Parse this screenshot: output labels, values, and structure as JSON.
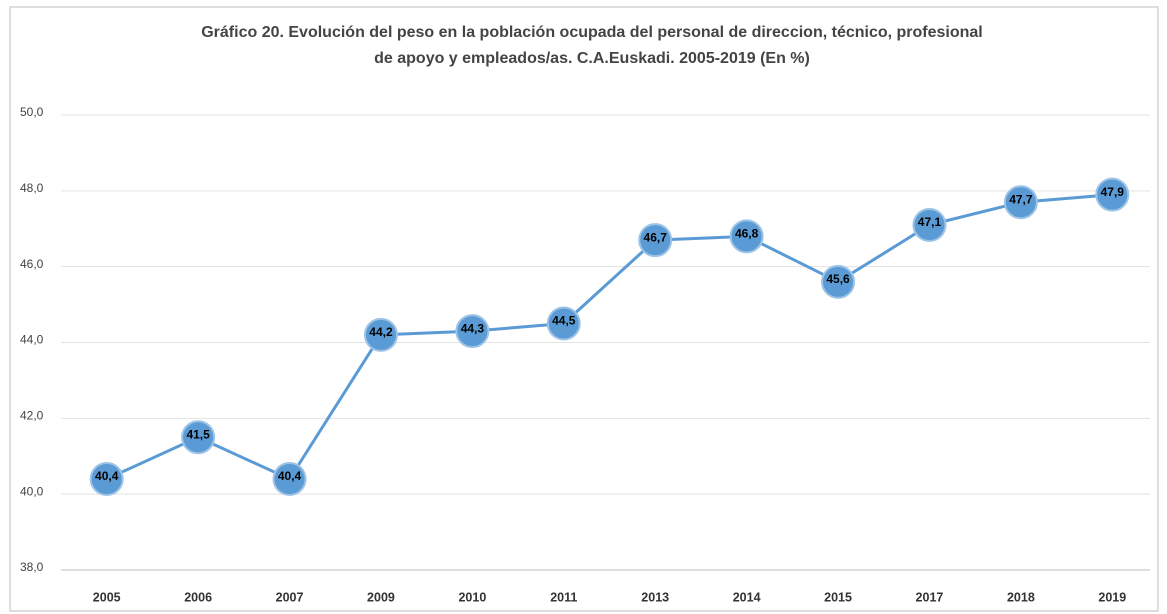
{
  "chart_data": {
    "type": "line",
    "title": [
      "Gráfico 20. Evolución del peso en la población ocupada del personal de direccion, técnico, profesional",
      "de apoyo y empleados/as. C.A.Euskadi. 2005-2019 (En %)"
    ],
    "categories": [
      "2005",
      "2006",
      "2007",
      "2009",
      "2010",
      "2011",
      "2013",
      "2014",
      "2015",
      "2017",
      "2018",
      "2019"
    ],
    "values": [
      40.4,
      41.5,
      40.4,
      44.2,
      44.3,
      44.5,
      46.7,
      46.8,
      45.6,
      47.1,
      47.7,
      47.9
    ],
    "value_labels": [
      "40,4",
      "41,5",
      "40,4",
      "44,2",
      "44,3",
      "44,5",
      "46,7",
      "46,8",
      "45,6",
      "47,1",
      "47,7",
      "47,9"
    ],
    "color": "#5b9bd5",
    "ylim": [
      38,
      50
    ],
    "yticks": [
      {
        "value": 38,
        "label": "38,0"
      },
      {
        "value": 40,
        "label": "40,0"
      },
      {
        "value": 42,
        "label": "42,0"
      },
      {
        "value": 44,
        "label": "44,0"
      },
      {
        "value": 46,
        "label": "46,0"
      },
      {
        "value": 48,
        "label": "48,0"
      },
      {
        "value": 50,
        "label": "50,0"
      }
    ],
    "grid": true
  }
}
